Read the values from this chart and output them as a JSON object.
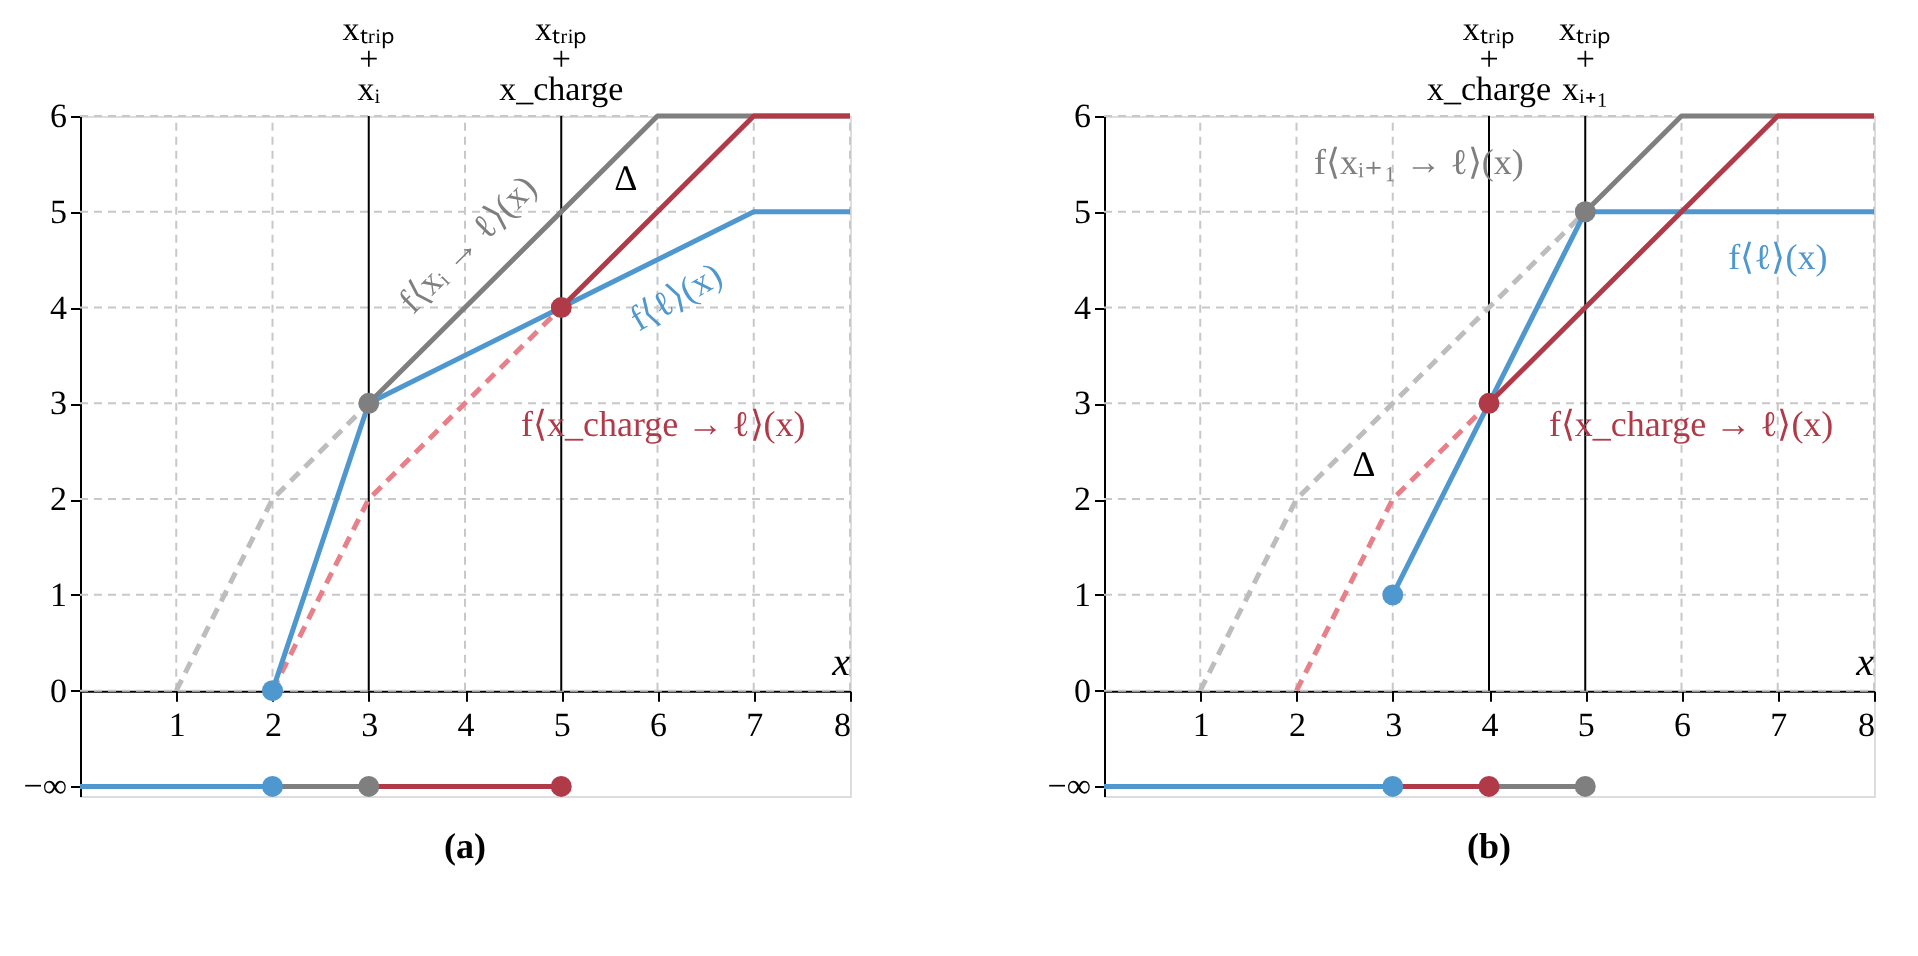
{
  "chart_data": [
    {
      "type": "line",
      "title": "(a)",
      "xlabel": "x",
      "xlim": [
        0,
        8
      ],
      "xticks": [
        1,
        2,
        3,
        4,
        5,
        6,
        7,
        8
      ],
      "ylim": [
        -1.1,
        6
      ],
      "yticks": [
        {
          "value": -1,
          "label": "−∞"
        },
        0,
        1,
        2,
        3,
        4,
        5,
        6
      ],
      "grid": true,
      "series": [
        {
          "color": "#bdbdbd",
          "line_style": "dashed",
          "x": [
            1,
            2,
            3
          ],
          "values": [
            0,
            2,
            3
          ]
        },
        {
          "color": "#e8808a",
          "line_style": "dashed",
          "x": [
            2,
            3,
            5
          ],
          "values": [
            0,
            2,
            4
          ]
        },
        {
          "name": "f⟨xᵢ → ℓ⟩(x)",
          "color": "#7f7f7f",
          "line_style": "solid",
          "x": [
            3,
            6,
            8
          ],
          "values": [
            3,
            6,
            6
          ]
        },
        {
          "name": "f⟨ℓ⟩(x)",
          "color": "#4f97cf",
          "line_style": "solid",
          "x": [
            2,
            3,
            5,
            7,
            8
          ],
          "values": [
            0,
            3,
            4,
            5,
            5
          ]
        },
        {
          "name": "f⟨x_charge → ℓ⟩(x)",
          "color": "#b03a48",
          "line_style": "solid",
          "x": [
            5,
            7,
            8
          ],
          "values": [
            4,
            6,
            6
          ]
        },
        {
          "color": "#4f97cf",
          "line_style": "solid",
          "x": [
            0,
            2
          ],
          "values": [
            -1,
            -1
          ]
        },
        {
          "color": "#7f7f7f",
          "line_style": "solid",
          "x": [
            2,
            3
          ],
          "values": [
            -1,
            -1
          ]
        },
        {
          "color": "#b03a48",
          "line_style": "solid",
          "x": [
            3,
            5
          ],
          "values": [
            -1,
            -1
          ]
        },
        {
          "type": "scatter",
          "marker": "circle",
          "color": "#4f97cf",
          "x": [
            2,
            2
          ],
          "values": [
            0,
            -1
          ]
        },
        {
          "type": "scatter",
          "marker": "circle",
          "color": "#7f7f7f",
          "x": [
            3,
            3
          ],
          "values": [
            3,
            -1
          ]
        },
        {
          "type": "scatter",
          "marker": "circle",
          "color": "#b03a48",
          "x": [
            5,
            5
          ],
          "values": [
            4,
            -1
          ]
        }
      ],
      "ref_lines": [
        {
          "axis": "x",
          "value": 3,
          "label": "xₜᵣᵢₚ\n+\nxᵢ",
          "color": "#000000"
        },
        {
          "axis": "x",
          "value": 5,
          "label": "xₜᵣᵢₚ\n+\nx_charge",
          "color": "#000000"
        }
      ],
      "annotations": [
        "Δ"
      ]
    },
    {
      "type": "line",
      "title": "(b)",
      "xlabel": "x",
      "xlim": [
        0,
        8
      ],
      "xticks": [
        1,
        2,
        3,
        4,
        5,
        6,
        7,
        8
      ],
      "ylim": [
        -1.1,
        6
      ],
      "yticks": [
        {
          "value": -1,
          "label": "−∞"
        },
        0,
        1,
        2,
        3,
        4,
        5,
        6
      ],
      "grid": true,
      "series": [
        {
          "color": "#bdbdbd",
          "line_style": "dashed",
          "x": [
            1,
            2,
            3,
            4,
            5
          ],
          "values": [
            0,
            2,
            3,
            4,
            5
          ]
        },
        {
          "color": "#e8808a",
          "line_style": "dashed",
          "x": [
            2,
            3,
            4
          ],
          "values": [
            0,
            2,
            3
          ]
        },
        {
          "name": "f⟨xᵢ₊₁ → ℓ⟩(x)",
          "color": "#7f7f7f",
          "line_style": "solid",
          "x": [
            5,
            6,
            8
          ],
          "values": [
            5,
            6,
            6
          ]
        },
        {
          "name": "f⟨ℓ⟩(x)",
          "color": "#4f97cf",
          "line_style": "solid",
          "x": [
            3,
            4,
            5,
            8
          ],
          "values": [
            1,
            3,
            5,
            5
          ]
        },
        {
          "name": "f⟨x_charge → ℓ⟩(x)",
          "color": "#b03a48",
          "line_style": "solid",
          "x": [
            4,
            7,
            8
          ],
          "values": [
            3,
            6,
            6
          ]
        },
        {
          "color": "#4f97cf",
          "line_style": "solid",
          "x": [
            0,
            3
          ],
          "values": [
            -1,
            -1
          ]
        },
        {
          "color": "#b03a48",
          "line_style": "solid",
          "x": [
            3,
            4
          ],
          "values": [
            -1,
            -1
          ]
        },
        {
          "color": "#7f7f7f",
          "line_style": "solid",
          "x": [
            4,
            5
          ],
          "values": [
            -1,
            -1
          ]
        },
        {
          "type": "scatter",
          "marker": "circle",
          "color": "#4f97cf",
          "x": [
            3,
            3
          ],
          "values": [
            1,
            -1
          ]
        },
        {
          "type": "scatter",
          "marker": "circle",
          "color": "#b03a48",
          "x": [
            4,
            4
          ],
          "values": [
            3,
            -1
          ]
        },
        {
          "type": "scatter",
          "marker": "circle",
          "color": "#7f7f7f",
          "x": [
            5,
            5
          ],
          "values": [
            5,
            -1
          ]
        }
      ],
      "ref_lines": [
        {
          "axis": "x",
          "value": 4,
          "label": "xₜᵣᵢₚ\n+\nx_charge",
          "color": "#000000"
        },
        {
          "axis": "x",
          "value": 5,
          "label": "xₜᵣᵢₚ\n+\nxᵢ₊₁",
          "color": "#000000"
        }
      ],
      "annotations": [
        "Δ"
      ]
    }
  ]
}
